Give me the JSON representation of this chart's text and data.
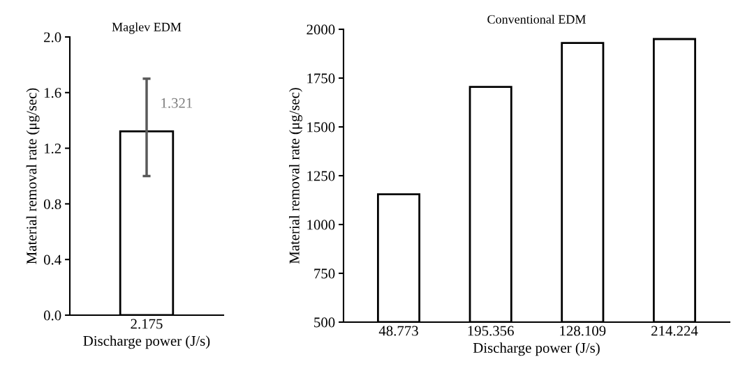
{
  "chart_data": [
    {
      "type": "bar",
      "title": "Maglev EDM",
      "xlabel": "Discharge power (J/s)",
      "ylabel": "Material removal rate (μg/sec)",
      "categories": [
        "2.175"
      ],
      "values": [
        1.321
      ],
      "color": "#ffffff",
      "errors": [
        [
          1.0,
          1.7
        ]
      ],
      "value_labels": [
        "1.321"
      ],
      "ylim": [
        0,
        2.0
      ],
      "yticks": [
        {
          "value": 0,
          "label": "0.0"
        },
        0.4,
        0.8,
        1.2,
        1.6,
        {
          "value": 2.0,
          "label": "2.0"
        }
      ],
      "grid": false,
      "legend": false
    },
    {
      "type": "bar",
      "title": "Conventional EDM",
      "xlabel": "Discharge power (J/s)",
      "ylabel": "Material removal rate (μg/sec)",
      "categories": [
        "48.773",
        "195.356",
        "128.109",
        "214.224"
      ],
      "values": [
        1155,
        1705,
        1930,
        1950
      ],
      "color": "#ffffff",
      "ylim": [
        500,
        2000
      ],
      "yticks": [
        500,
        750,
        1000,
        1250,
        1500,
        1750,
        2000
      ],
      "grid": false,
      "legend": false
    }
  ]
}
